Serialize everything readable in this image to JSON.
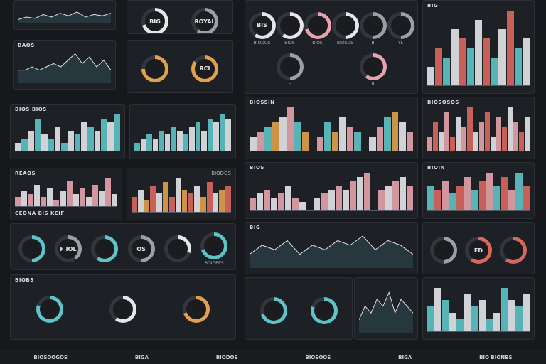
{
  "colors": {
    "teal": "#5fc3c7",
    "pink": "#e7a3ad",
    "white": "#e6e6ea",
    "orange": "#e2a04b",
    "red": "#d9675f",
    "gray": "#9aa0a8"
  },
  "panels": [
    {
      "id": "l1",
      "type": "line",
      "title": "",
      "values": [
        3,
        5,
        4,
        7,
        5,
        8,
        6,
        9,
        5,
        7,
        6,
        8
      ]
    },
    {
      "id": "l2",
      "type": "gauges",
      "title": "",
      "items": [
        {
          "label": "",
          "text": "BIG",
          "v": 0.7,
          "c": "#e6e6ea"
        },
        {
          "label": "",
          "text": "ROYAL",
          "v": 0.6,
          "c": "#9aa0a8"
        }
      ]
    },
    {
      "id": "l3",
      "type": "line",
      "title": "BAOS",
      "values": [
        4,
        4,
        5,
        4,
        5,
        6,
        5,
        7,
        9,
        6,
        8,
        5,
        7,
        4
      ]
    },
    {
      "id": "l4",
      "type": "gauges",
      "title": "",
      "items": [
        {
          "label": "",
          "text": "",
          "v": 0.75,
          "c": "#e2a04b"
        },
        {
          "label": "",
          "text": "RCI",
          "v": 0.85,
          "c": "#e2a04b"
        }
      ]
    },
    {
      "id": "l5",
      "type": "bars",
      "title": "BIOS BIOS",
      "values": [
        2,
        3,
        5,
        8,
        4,
        3,
        6,
        2,
        5,
        4,
        7,
        6,
        5,
        8,
        7,
        9
      ],
      "c": [
        "#e6e6ea",
        "#5fc3c7"
      ]
    },
    {
      "id": "l6",
      "type": "bars",
      "title": "",
      "values": [
        2,
        3,
        4,
        3,
        5,
        4,
        6,
        5,
        4,
        6,
        7,
        5,
        8,
        7,
        9,
        8
      ],
      "c": [
        "#5fc3c7",
        "#e6e6ea"
      ]
    },
    {
      "id": "l7",
      "type": "bars",
      "title": "REAOS",
      "title2": "",
      "values": [
        3,
        5,
        4,
        7,
        3,
        6,
        2,
        5,
        8,
        4,
        6,
        3,
        7,
        5,
        9,
        4
      ],
      "c": [
        "#e7a3ad",
        "#e6e6ea"
      ],
      "foot": "CEONA BIS KCIF"
    },
    {
      "id": "l8",
      "type": "bars",
      "title": "",
      "title2": "BIODOS",
      "values": [
        4,
        6,
        3,
        7,
        5,
        8,
        4,
        9,
        6,
        5,
        7,
        4,
        8,
        5,
        6,
        7
      ],
      "c": [
        "#d9675f",
        "#e6e6ea",
        "#e2a04b"
      ]
    },
    {
      "id": "l9",
      "type": "gauges",
      "title": "",
      "items": [
        {
          "label": "",
          "text": "",
          "v": 0.5,
          "c": "#5fc3c7"
        },
        {
          "label": "",
          "text": "F IOL",
          "v": 0.4,
          "c": "#9aa0a8"
        },
        {
          "label": "",
          "text": "",
          "v": 0.6,
          "c": "#5fc3c7"
        },
        {
          "label": "",
          "text": "OS",
          "v": 0.5,
          "c": "#9aa0a8"
        },
        {
          "label": "",
          "text": "",
          "v": 0.3,
          "c": "#e6e6ea"
        },
        {
          "label": "BOIGEES",
          "text": "",
          "v": 0.7,
          "c": "#5fc3c7"
        }
      ]
    },
    {
      "id": "l10",
      "type": "gauges",
      "title": "BIOBS",
      "items": [
        {
          "label": "",
          "text": "",
          "v": 0.8,
          "c": "#5fc3c7"
        },
        {
          "label": "",
          "text": "",
          "v": 0.6,
          "c": "#e6e6ea"
        },
        {
          "label": "",
          "text": "",
          "v": 0.7,
          "c": "#e2a04b"
        }
      ]
    },
    {
      "id": "m1",
      "type": "gauges",
      "title": "",
      "items": [
        {
          "label": "BIODOS",
          "text": "BIS",
          "v": 0.6,
          "c": "#e6e6ea"
        },
        {
          "label": "BIOS",
          "text": "",
          "v": 0.6,
          "c": "#e6e6ea"
        },
        {
          "label": "BIOS",
          "text": "",
          "v": 0.7,
          "c": "#e7a3ad"
        },
        {
          "label": "BIOSOS",
          "text": "",
          "v": 0.5,
          "c": "#e6e6ea"
        },
        {
          "label": "B",
          "text": "",
          "v": 0.5,
          "c": "#9aa0a8"
        },
        {
          "label": "YL",
          "text": "",
          "v": 0.5,
          "c": "#9aa0a8"
        },
        {
          "label": "E",
          "text": "",
          "v": 0.5,
          "c": "#9aa0a8"
        },
        {
          "label": "B",
          "text": "",
          "v": 0.6,
          "c": "#e7a3ad"
        }
      ]
    },
    {
      "id": "m2",
      "type": "bars",
      "title": "BIOSSIN",
      "values": [
        3,
        4,
        5,
        6,
        7,
        9,
        6,
        4,
        0,
        3,
        6,
        4,
        7,
        5,
        4,
        0,
        3,
        5,
        7,
        8,
        6,
        4
      ],
      "c": [
        "#e6e6ea",
        "#e7a3ad",
        "#5fc3c7",
        "#e2a04b"
      ]
    },
    {
      "id": "m3",
      "type": "bars",
      "title": "BIOS",
      "values": [
        3,
        4,
        5,
        3,
        4,
        6,
        3,
        2,
        0,
        3,
        4,
        5,
        6,
        5,
        7,
        8,
        9,
        0,
        5,
        6,
        7,
        8,
        6
      ],
      "c": [
        "#e7a3ad",
        "#e6e6ea"
      ]
    },
    {
      "id": "m4",
      "type": "line",
      "title": "BIG",
      "values": [
        3,
        5,
        4,
        6,
        3,
        5,
        4,
        6,
        5,
        7,
        4,
        6,
        5,
        3
      ]
    },
    {
      "id": "m5",
      "type": "gauges",
      "title": "",
      "items": [
        {
          "label": "",
          "text": "",
          "v": 0.7,
          "c": "#5fc3c7"
        },
        {
          "label": "",
          "text": "",
          "v": 0.8,
          "c": "#5fc3c7"
        }
      ]
    },
    {
      "id": "m6",
      "type": "line",
      "title": "",
      "values": [
        2,
        4,
        3,
        5,
        4,
        6,
        3,
        5,
        4,
        3
      ]
    },
    {
      "id": "r1",
      "type": "bars",
      "title": "BIG",
      "values": [
        2,
        4,
        3,
        6,
        5,
        4,
        7,
        5,
        3,
        6,
        8,
        4,
        5
      ],
      "c": [
        "#e6e6ea",
        "#d9675f",
        "#5fc3c7"
      ]
    },
    {
      "id": "r2",
      "type": "bars",
      "title": "BIOSOSOS",
      "values": [
        3,
        6,
        4,
        8,
        3,
        7,
        5,
        9,
        4,
        6,
        8,
        3,
        7,
        5,
        9,
        6,
        4,
        7
      ],
      "c": [
        "#e7a3ad",
        "#d9675f",
        "#e6e6ea"
      ]
    },
    {
      "id": "r3",
      "type": "bars",
      "title": "BIOIN",
      "title2": "",
      "values": [
        6,
        5,
        7,
        4,
        6,
        8,
        5,
        7,
        9,
        6,
        8,
        5,
        9,
        6
      ],
      "c": [
        "#5fc3c7",
        "#d9675f",
        "#e7a3ad"
      ]
    },
    {
      "id": "r4",
      "type": "gauges",
      "title": "",
      "items": [
        {
          "label": "",
          "text": "",
          "v": 0.5,
          "c": "#9aa0a8"
        },
        {
          "label": "",
          "text": "ED",
          "v": 0.6,
          "c": "#d9675f"
        },
        {
          "label": "",
          "text": "",
          "v": 0.6,
          "c": "#d9675f"
        }
      ]
    },
    {
      "id": "r5",
      "type": "bars",
      "title": "",
      "values": [
        4,
        7,
        5,
        3,
        2,
        6,
        4,
        5,
        2,
        3,
        7,
        5,
        4,
        6
      ],
      "c": [
        "#5fc3c7",
        "#e6e6ea"
      ]
    }
  ],
  "footer": [
    "BIOSOOGOS",
    "BIGA",
    "BIODOS",
    "BIOSOOS",
    "BIGA",
    "BIO BIONBS"
  ]
}
